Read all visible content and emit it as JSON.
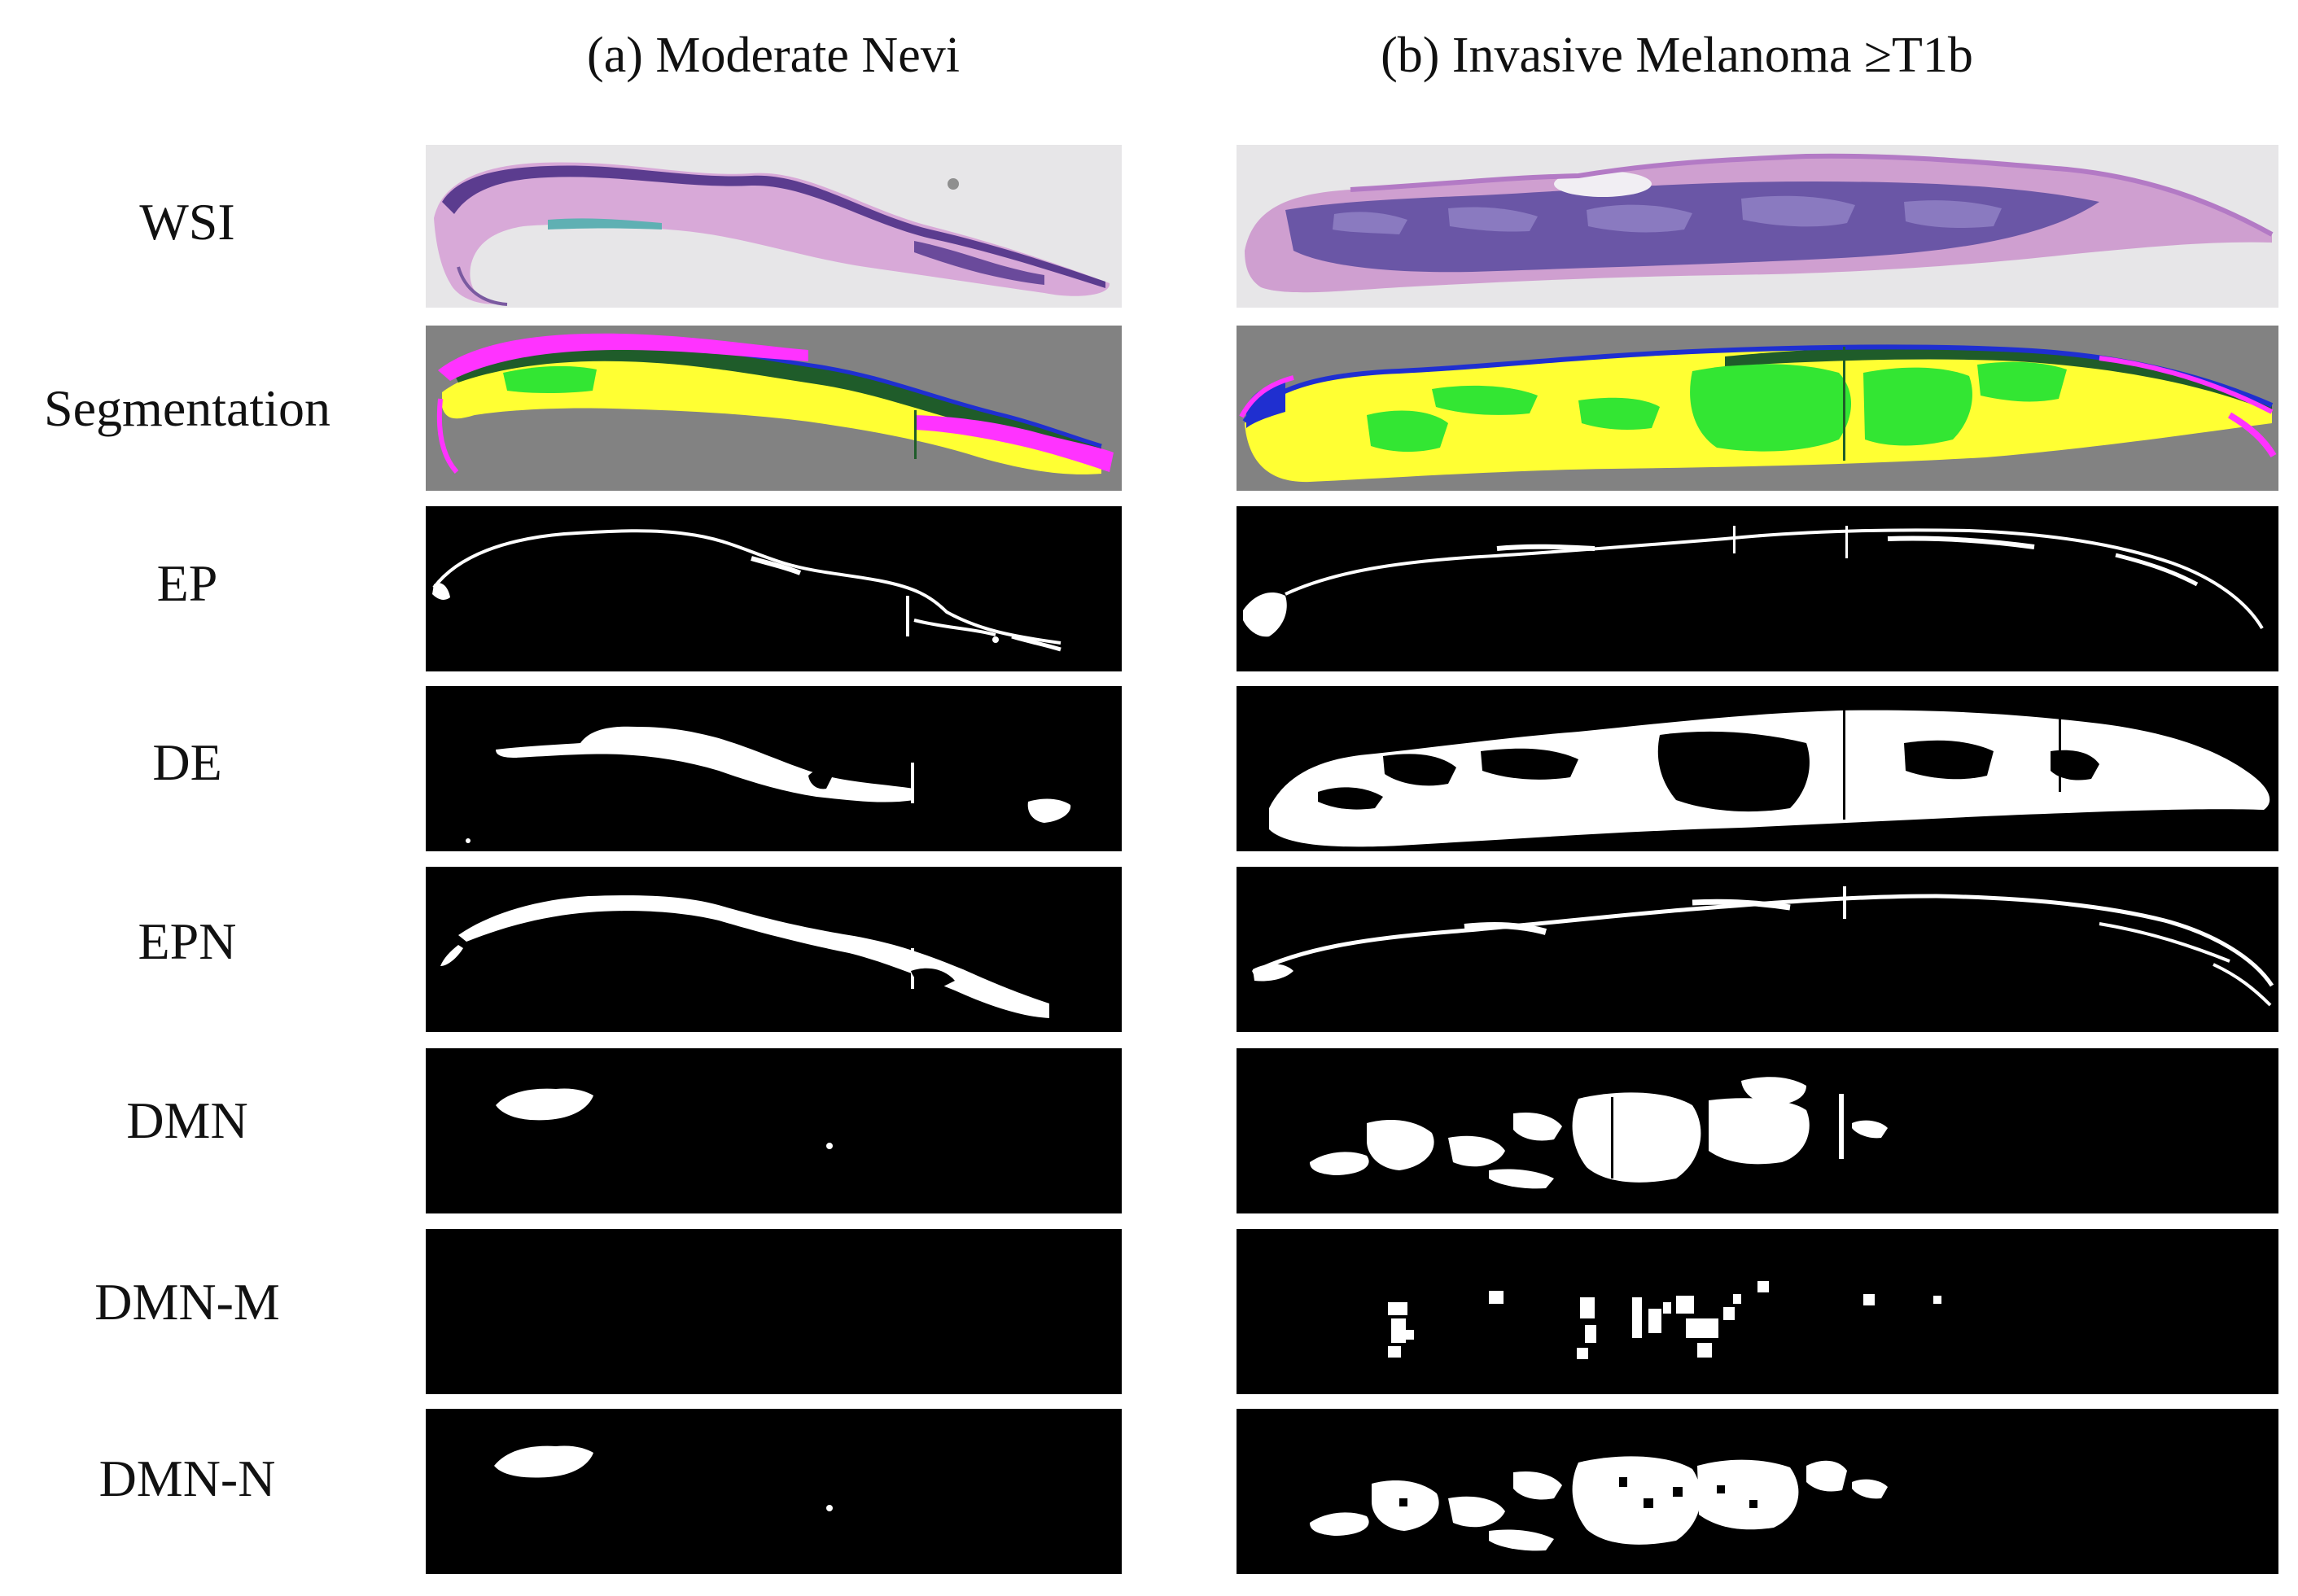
{
  "figure": {
    "columns": [
      {
        "title": "(a) Moderate Nevi"
      },
      {
        "title": "(b) Invasive Melanoma ≥T1b"
      }
    ],
    "rows": [
      {
        "label": "WSI"
      },
      {
        "label": "Segmentation"
      },
      {
        "label": "EP"
      },
      {
        "label": "DE"
      },
      {
        "label": "EPN"
      },
      {
        "label": "DMN"
      },
      {
        "label": "DMN-M"
      },
      {
        "label": "DMN-N"
      }
    ]
  },
  "colors": {
    "wsi_background": "#e7e6e8",
    "tissue_pink": "#cf9fd0",
    "tissue_purple": "#5b3c8f",
    "segmentation_background": "#828282",
    "epidermis": "#ff33ff",
    "dermis": "#ffff33",
    "nevus_epidermal": "#1f5c2a",
    "nevus_dermal": "#33e633",
    "border": "#1f2fd0",
    "mask_background": "#000000",
    "mask_foreground": "#ffffff"
  }
}
